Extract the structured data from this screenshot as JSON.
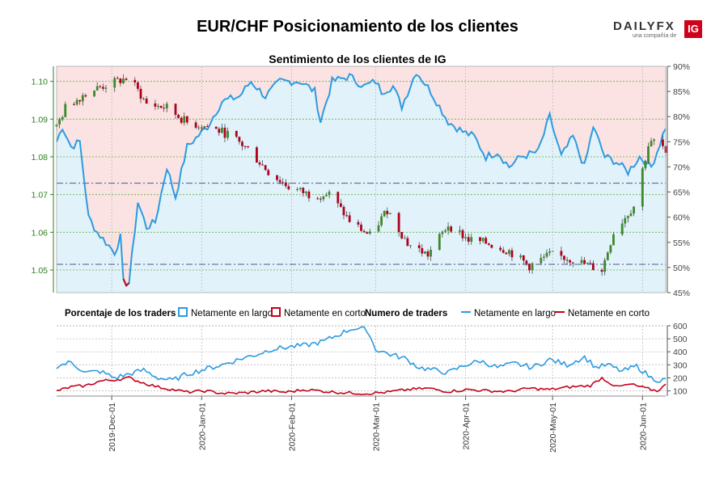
{
  "title": "EUR/CHF Posicionamiento de los clientes",
  "subtitle": "Sentimiento de los clientes de IG",
  "logo": {
    "brand": "DAILYFX",
    "tagline": "una compañía de",
    "badge": "IG"
  },
  "colors": {
    "long": "#2c9be0",
    "short": "#c4001a",
    "long_fill": "#e2f2fb",
    "short_fill": "#fbe3e3",
    "candle_up": "#3c8a2a",
    "candle_down": "#b0001c",
    "axis_green": "#2e7d1e"
  },
  "legend": {
    "pct_label": "Porcentaje de los traders",
    "pct_long": "Netamente en largo",
    "pct_short": "Netamente en corto",
    "num_label": "Numero de traders",
    "num_long": "Netamente en largo",
    "num_short": "Netamente en corto"
  },
  "chart_data": [
    {
      "type": "candlestick",
      "series_name": "EUR/CHF",
      "y_ticks": [
        "1.05",
        "1.06",
        "1.07",
        "1.08",
        "1.09",
        "1.10"
      ],
      "ylim": [
        1.044,
        1.104
      ],
      "x_ticks": [
        "2019-Dec-01",
        "2020-Jan-01",
        "2020-Feb-01",
        "2020-Mar-01",
        "2020-Apr-01",
        "2020-May-01",
        "2020-Jun-01"
      ],
      "x_range": [
        "2019-11-12",
        "2020-06-09"
      ],
      "reference_lines": [
        1.0515,
        1.073
      ],
      "close_anchors": [
        [
          "2019-11-12",
          1.088
        ],
        [
          "2019-11-15",
          1.093
        ],
        [
          "2019-11-22",
          1.097
        ],
        [
          "2019-11-29",
          1.099
        ],
        [
          "2019-12-07",
          1.101
        ],
        [
          "2019-12-13",
          1.094
        ],
        [
          "2019-12-20",
          1.093
        ],
        [
          "2019-12-27",
          1.089
        ],
        [
          "2020-01-03",
          1.088
        ],
        [
          "2020-01-10",
          1.086
        ],
        [
          "2020-01-17",
          1.082
        ],
        [
          "2020-01-24",
          1.076
        ],
        [
          "2020-01-31",
          1.072
        ],
        [
          "2020-02-07",
          1.07
        ],
        [
          "2020-02-14",
          1.07
        ],
        [
          "2020-02-21",
          1.063
        ],
        [
          "2020-02-28",
          1.059
        ],
        [
          "2020-03-05",
          1.066
        ],
        [
          "2020-03-12",
          1.057
        ],
        [
          "2020-03-19",
          1.054
        ],
        [
          "2020-03-26",
          1.062
        ],
        [
          "2020-04-02",
          1.058
        ],
        [
          "2020-04-09",
          1.057
        ],
        [
          "2020-04-16",
          1.055
        ],
        [
          "2020-04-23",
          1.051
        ],
        [
          "2020-04-30",
          1.054
        ],
        [
          "2020-05-07",
          1.053
        ],
        [
          "2020-05-14",
          1.051
        ],
        [
          "2020-05-18",
          1.05
        ],
        [
          "2020-05-22",
          1.06
        ],
        [
          "2020-05-29",
          1.067
        ],
        [
          "2020-06-03",
          1.083
        ],
        [
          "2020-06-07",
          1.085
        ],
        [
          "2020-06-09",
          1.08
        ]
      ]
    },
    {
      "type": "area",
      "series": [
        {
          "name": "Netamente en largo",
          "role": "long_pct"
        },
        {
          "name": "Netamente en corto",
          "role": "short_pct"
        }
      ],
      "y_ticks": [
        "45%",
        "50%",
        "55%",
        "60%",
        "65%",
        "70%",
        "75%",
        "80%",
        "85%",
        "90%"
      ],
      "ylim": [
        45,
        90
      ],
      "long_pct_anchors": [
        [
          "2019-11-12",
          75
        ],
        [
          "2019-11-14",
          78
        ],
        [
          "2019-11-17",
          74
        ],
        [
          "2019-11-20",
          75
        ],
        [
          "2019-11-23",
          60
        ],
        [
          "2019-11-26",
          57
        ],
        [
          "2019-11-29",
          55
        ],
        [
          "2019-12-02",
          53
        ],
        [
          "2019-12-04",
          56
        ],
        [
          "2019-12-05",
          47
        ],
        [
          "2019-12-07",
          47
        ],
        [
          "2019-12-10",
          63
        ],
        [
          "2019-12-13",
          58
        ],
        [
          "2019-12-16",
          59
        ],
        [
          "2019-12-20",
          70
        ],
        [
          "2019-12-23",
          64
        ],
        [
          "2019-12-27",
          74
        ],
        [
          "2020-01-03",
          78
        ],
        [
          "2020-01-08",
          83
        ],
        [
          "2020-01-14",
          84
        ],
        [
          "2020-01-18",
          87
        ],
        [
          "2020-01-23",
          84
        ],
        [
          "2020-01-28",
          87
        ],
        [
          "2020-02-04",
          87
        ],
        [
          "2020-02-09",
          85
        ],
        [
          "2020-02-11",
          79
        ],
        [
          "2020-02-15",
          87
        ],
        [
          "2020-02-21",
          88
        ],
        [
          "2020-02-26",
          86
        ],
        [
          "2020-03-01",
          87
        ],
        [
          "2020-03-03",
          85
        ],
        [
          "2020-03-07",
          86
        ],
        [
          "2020-03-10",
          82
        ],
        [
          "2020-03-15",
          89
        ],
        [
          "2020-03-20",
          85
        ],
        [
          "2020-03-26",
          79
        ],
        [
          "2020-03-31",
          77
        ],
        [
          "2020-04-04",
          76
        ],
        [
          "2020-04-08",
          72
        ],
        [
          "2020-04-12",
          73
        ],
        [
          "2020-04-16",
          70
        ],
        [
          "2020-04-20",
          72
        ],
        [
          "2020-04-26",
          73
        ],
        [
          "2020-04-30",
          80
        ],
        [
          "2020-05-04",
          72
        ],
        [
          "2020-05-08",
          76
        ],
        [
          "2020-05-12",
          70
        ],
        [
          "2020-05-15",
          78
        ],
        [
          "2020-05-19",
          72
        ],
        [
          "2020-05-23",
          71
        ],
        [
          "2020-05-27",
          69
        ],
        [
          "2020-05-31",
          72
        ],
        [
          "2020-06-04",
          70
        ],
        [
          "2020-06-06",
          73
        ],
        [
          "2020-06-09",
          78
        ]
      ]
    },
    {
      "type": "line",
      "series": [
        {
          "name": "Netamente en largo"
        },
        {
          "name": "Netamente en corto"
        }
      ],
      "y_ticks": [
        "100",
        "200",
        "300",
        "400",
        "500",
        "600"
      ],
      "ylim": [
        60,
        600
      ],
      "long_anchors": [
        [
          "2019-11-12",
          290
        ],
        [
          "2019-11-17",
          320
        ],
        [
          "2019-11-22",
          240
        ],
        [
          "2019-11-27",
          250
        ],
        [
          "2019-12-02",
          200
        ],
        [
          "2019-12-07",
          230
        ],
        [
          "2019-12-12",
          260
        ],
        [
          "2019-12-17",
          200
        ],
        [
          "2019-12-22",
          180
        ],
        [
          "2019-12-27",
          230
        ],
        [
          "2020-01-01",
          260
        ],
        [
          "2020-01-08",
          300
        ],
        [
          "2020-01-15",
          350
        ],
        [
          "2020-01-20",
          380
        ],
        [
          "2020-01-25",
          420
        ],
        [
          "2020-02-01",
          440
        ],
        [
          "2020-02-06",
          450
        ],
        [
          "2020-02-12",
          480
        ],
        [
          "2020-02-17",
          530
        ],
        [
          "2020-02-22",
          580
        ],
        [
          "2020-02-27",
          570
        ],
        [
          "2020-03-01",
          420
        ],
        [
          "2020-03-06",
          380
        ],
        [
          "2020-03-11",
          350
        ],
        [
          "2020-03-16",
          280
        ],
        [
          "2020-03-21",
          260
        ],
        [
          "2020-03-26",
          240
        ],
        [
          "2020-04-01",
          300
        ],
        [
          "2020-04-06",
          330
        ],
        [
          "2020-04-12",
          280
        ],
        [
          "2020-04-18",
          310
        ],
        [
          "2020-04-24",
          280
        ],
        [
          "2020-04-30",
          340
        ],
        [
          "2020-05-06",
          300
        ],
        [
          "2020-05-12",
          360
        ],
        [
          "2020-05-16",
          280
        ],
        [
          "2020-05-20",
          300
        ],
        [
          "2020-05-25",
          250
        ],
        [
          "2020-05-30",
          290
        ],
        [
          "2020-06-04",
          200
        ],
        [
          "2020-06-07",
          180
        ],
        [
          "2020-06-09",
          185
        ]
      ],
      "short_anchors": [
        [
          "2019-11-12",
          100
        ],
        [
          "2019-11-17",
          130
        ],
        [
          "2019-11-22",
          140
        ],
        [
          "2019-11-27",
          175
        ],
        [
          "2019-12-02",
          185
        ],
        [
          "2019-12-07",
          200
        ],
        [
          "2019-12-12",
          160
        ],
        [
          "2019-12-17",
          130
        ],
        [
          "2019-12-22",
          110
        ],
        [
          "2019-12-27",
          90
        ],
        [
          "2020-01-02",
          100
        ],
        [
          "2020-01-09",
          80
        ],
        [
          "2020-01-16",
          85
        ],
        [
          "2020-01-23",
          100
        ],
        [
          "2020-01-30",
          90
        ],
        [
          "2020-02-06",
          110
        ],
        [
          "2020-02-13",
          95
        ],
        [
          "2020-02-20",
          85
        ],
        [
          "2020-02-27",
          80
        ],
        [
          "2020-03-05",
          90
        ],
        [
          "2020-03-12",
          110
        ],
        [
          "2020-03-19",
          120
        ],
        [
          "2020-03-26",
          95
        ],
        [
          "2020-04-02",
          110
        ],
        [
          "2020-04-09",
          100
        ],
        [
          "2020-04-16",
          95
        ],
        [
          "2020-04-23",
          120
        ],
        [
          "2020-04-30",
          110
        ],
        [
          "2020-05-07",
          130
        ],
        [
          "2020-05-14",
          140
        ],
        [
          "2020-05-18",
          200
        ],
        [
          "2020-05-23",
          130
        ],
        [
          "2020-05-28",
          150
        ],
        [
          "2020-06-02",
          120
        ],
        [
          "2020-06-06",
          100
        ],
        [
          "2020-06-09",
          145
        ]
      ]
    }
  ]
}
